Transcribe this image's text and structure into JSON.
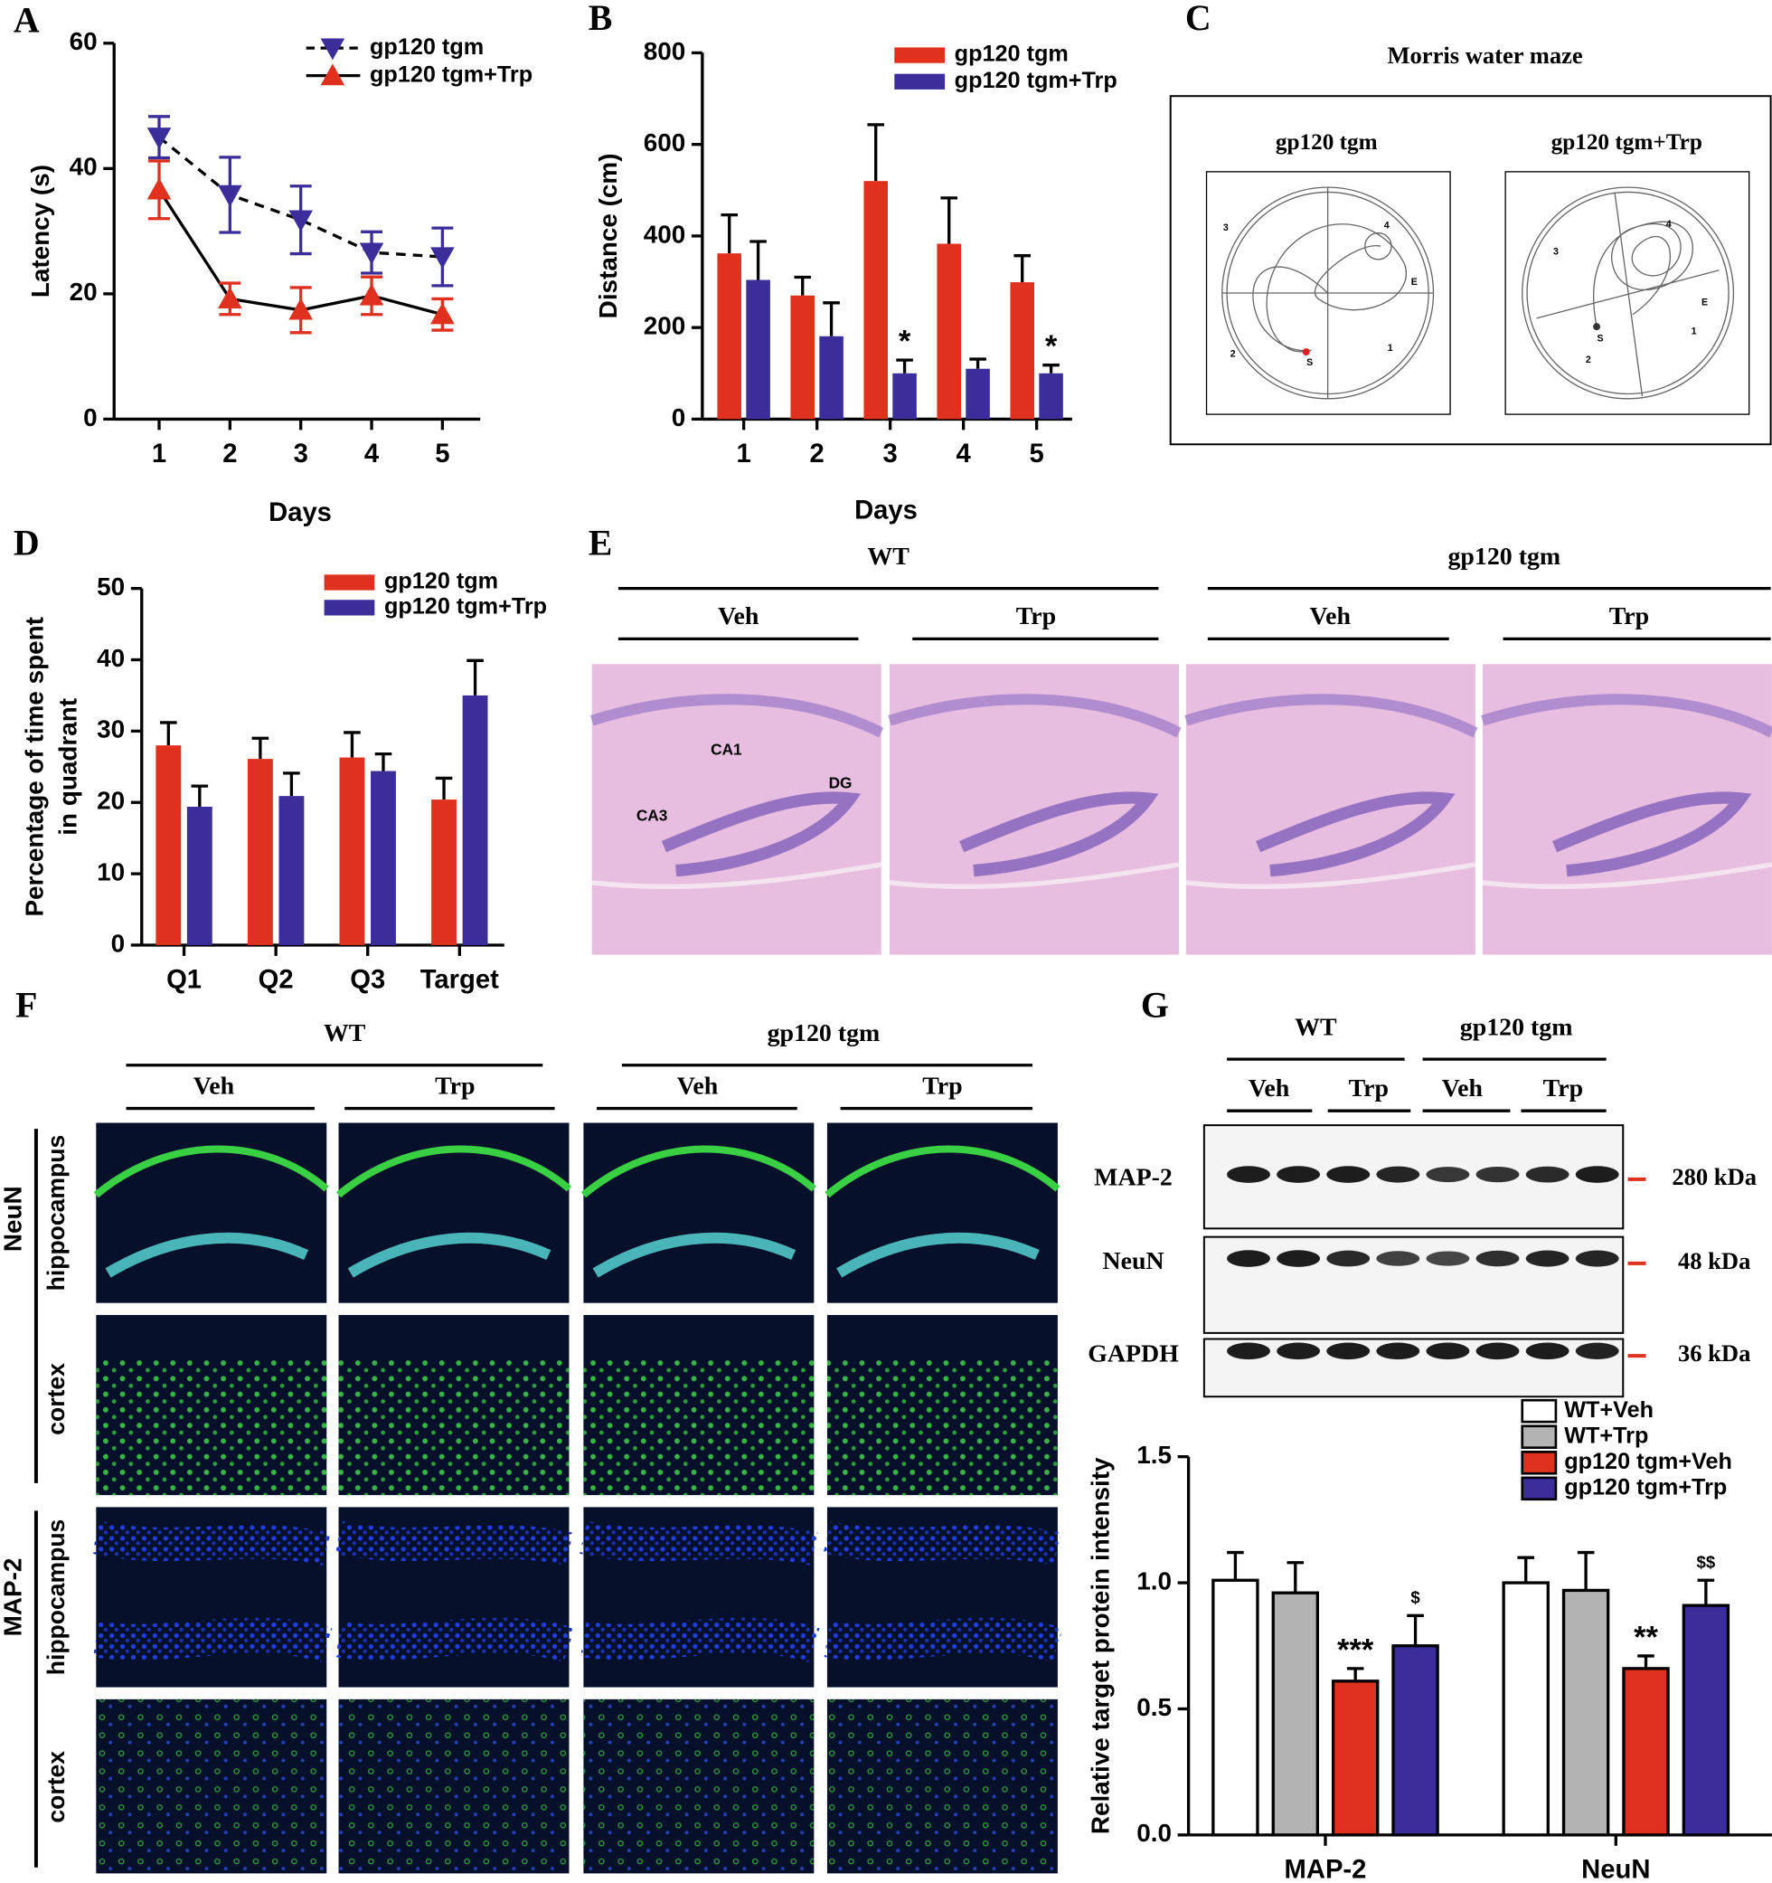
{
  "panel_letters": [
    "A",
    "B",
    "C",
    "D",
    "E",
    "F",
    "G"
  ],
  "chart_data": [
    {
      "type": "line",
      "x_label": "Days",
      "y_label": "Latency (s)",
      "categories": [
        "1",
        "2",
        "3",
        "4",
        "5"
      ],
      "ylim": [
        0,
        60
      ],
      "yticks": [
        0,
        20,
        40,
        60
      ],
      "legend": "upper right",
      "series": [
        {
          "name": "gp120 tgm",
          "color": "#3b2e9b",
          "line_style": "dashed",
          "marker": "down-triangle",
          "values": [
            45,
            35.8,
            31.8,
            26.6,
            25.9
          ],
          "errors": [
            3.3,
            6,
            5.4,
            3.3,
            4.6
          ]
        },
        {
          "name": "gp120 tgm+Trp",
          "color": "#e0301e",
          "line_style": "solid",
          "marker": "up-triangle",
          "values": [
            36.6,
            19.2,
            17.4,
            19.7,
            16.7
          ],
          "errors": [
            4.6,
            2.5,
            3.6,
            3,
            2.5
          ]
        }
      ]
    },
    {
      "type": "bar",
      "x_label": "Days",
      "y_label": "Distance (cm)",
      "categories": [
        "1",
        "2",
        "3",
        "4",
        "5"
      ],
      "ylim": [
        0,
        800
      ],
      "yticks": [
        0,
        200,
        400,
        600,
        800
      ],
      "legend": "upper right",
      "series": [
        {
          "name": "gp120 tgm",
          "color": "#e0301e",
          "values": [
            362,
            270,
            520,
            383,
            299
          ],
          "errors": [
            84,
            40,
            123,
            100,
            58
          ]
        },
        {
          "name": "gp120 tgm+Trp",
          "color": "#3b2e9b",
          "values": [
            304,
            181,
            100,
            110,
            100
          ],
          "errors": [
            84,
            73,
            29,
            21,
            18
          ],
          "annotations": [
            null,
            null,
            "*",
            null,
            "*"
          ]
        }
      ]
    },
    {
      "type": "bar",
      "y_label": [
        "Percentage of time spent",
        "in quadrant"
      ],
      "categories": [
        "Q1",
        "Q2",
        "Q3",
        "Target"
      ],
      "ylim": [
        0,
        50
      ],
      "yticks": [
        0,
        10,
        20,
        30,
        40,
        50
      ],
      "legend": "upper right",
      "series": [
        {
          "name": "gp120 tgm",
          "color": "#e0301e",
          "values": [
            28,
            26.1,
            26.3,
            20.4
          ],
          "errors": [
            3.2,
            2.9,
            3.5,
            3
          ]
        },
        {
          "name": "gp120 tgm+Trp",
          "color": "#3b2e9b",
          "values": [
            19.4,
            20.9,
            24.4,
            35
          ],
          "errors": [
            2.9,
            3.2,
            2.4,
            4.9
          ]
        }
      ]
    },
    {
      "type": "bar",
      "y_label": "Relative target protein intensity",
      "categories": [
        "MAP-2",
        "NeuN"
      ],
      "ylim": [
        0,
        1.5
      ],
      "yticks": [
        {
          "value": 0,
          "label": "0.0"
        },
        {
          "value": 0.5,
          "label": "0.5"
        },
        {
          "value": 1,
          "label": "1.0"
        },
        {
          "value": 1.5,
          "label": "1.5"
        }
      ],
      "legend": "upper right",
      "series": [
        {
          "name": "WT+Veh",
          "color": "#ffffff",
          "values": [
            1.01,
            1.0
          ],
          "errors": [
            0.11,
            0.1
          ]
        },
        {
          "name": "WT+Trp",
          "color": "#b3b3b3",
          "values": [
            0.96,
            0.97
          ],
          "errors": [
            0.12,
            0.15
          ]
        },
        {
          "name": "gp120 tgm+Veh",
          "color": "#e0301e",
          "values": [
            0.61,
            0.66
          ],
          "errors": [
            0.05,
            0.05
          ],
          "annotations": [
            "***",
            "**"
          ]
        },
        {
          "name": "gp120 tgm+Trp",
          "color": "#3b2e9b",
          "values": [
            0.75,
            0.91
          ],
          "errors": [
            0.12,
            0.1
          ],
          "annotations": [
            "$",
            "$$"
          ]
        }
      ]
    }
  ],
  "panel_c": {
    "title": "Morris water maze",
    "mazes": [
      {
        "label": "gp120 tgm",
        "marks": [
          "3",
          "4",
          "1",
          "2",
          "S",
          "E"
        ]
      },
      {
        "label": "gp120 tgm+Trp",
        "marks": [
          "3",
          "4",
          "1",
          "2",
          "S",
          "E"
        ]
      }
    ]
  },
  "panel_e": {
    "groups": [
      "WT",
      "gp120 tgm"
    ],
    "treatments": [
      "Veh",
      "Trp",
      "Veh",
      "Trp"
    ],
    "regions": [
      "CA1",
      "CA3",
      "DG"
    ]
  },
  "panel_f": {
    "groups": [
      "WT",
      "gp120 tgm"
    ],
    "treatments": [
      "Veh",
      "Trp",
      "Veh",
      "Trp"
    ],
    "stains": [
      "NeuN",
      "MAP-2"
    ],
    "regions": [
      "hippocampus",
      "cortex",
      "hippocampus",
      "cortex"
    ]
  },
  "panel_g": {
    "groups": [
      "WT",
      "gp120 tgm"
    ],
    "treatments": [
      "Veh",
      "Trp",
      "Veh",
      "Trp"
    ],
    "proteins": [
      "MAP-2",
      "NeuN",
      "GAPDH"
    ],
    "sizes": [
      "280 kDa",
      "48 kDa",
      "36 kDa"
    ]
  }
}
